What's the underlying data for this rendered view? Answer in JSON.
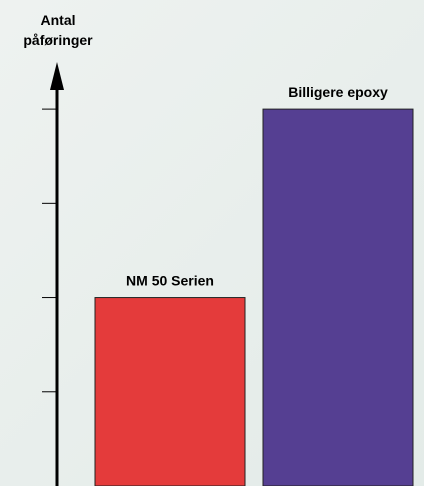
{
  "chart_data": {
    "type": "bar",
    "y_label": "Antal påføringer",
    "categories": [
      "NM 50 Serien",
      "Billigere epoxy"
    ],
    "values": [
      2,
      4
    ],
    "colors": [
      "#e43b3b",
      "#553f92"
    ],
    "ylim": [
      0,
      4.5
    ],
    "yticks": [
      1,
      2,
      3,
      4
    ],
    "grid": false
  }
}
